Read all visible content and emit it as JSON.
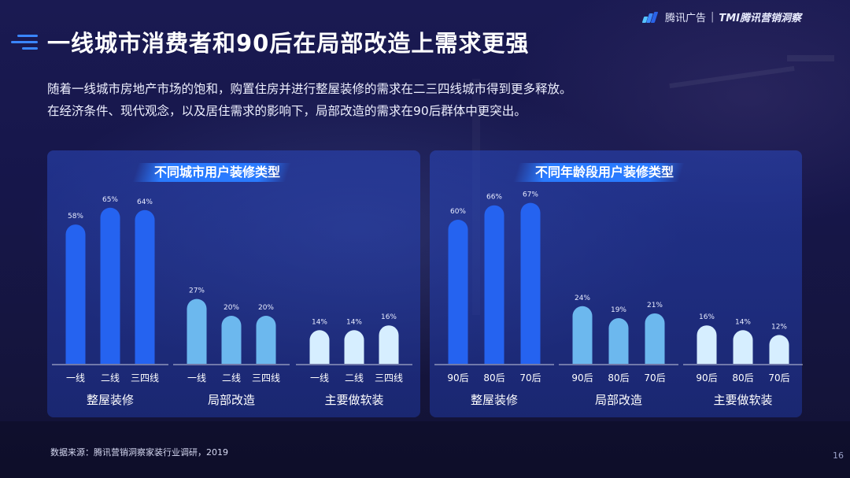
{
  "header": {
    "brand": "腾讯广告",
    "separator": "|",
    "brand2": "TMI腾讯营销洞察"
  },
  "page_title": "一线城市消费者和90后在局部改造上需求更强",
  "subtitle": [
    "随着一线城市房地产市场的饱和，购置住房并进行整屋装修的需求在二三四线城市得到更多释放。",
    "在经济条件、现代观念，以及居住需求的影响下，局部改造的需求在90后群体中更突出。"
  ],
  "footer": {
    "source": "数据来源：腾讯营销洞察家装行业调研，2019",
    "page_number": "16"
  },
  "colors": {
    "group1": "#2563f0",
    "group2": "#6cb8ee",
    "group3": "#d6eeff"
  },
  "chart_data": [
    {
      "type": "bar",
      "title": "不同城市用户装修类型",
      "ylim": [
        0,
        100
      ],
      "groups": [
        {
          "name": "整屋装修",
          "categories": [
            "一线",
            "二线",
            "三四线"
          ],
          "values": [
            58,
            65,
            64
          ],
          "labels": [
            "58%",
            "65%",
            "64%"
          ]
        },
        {
          "name": "局部改造",
          "categories": [
            "一线",
            "二线",
            "三四线"
          ],
          "values": [
            27,
            20,
            20
          ],
          "labels": [
            "27%",
            "20%",
            "20%"
          ]
        },
        {
          "name": "主要做软装",
          "categories": [
            "一线",
            "二线",
            "三四线"
          ],
          "values": [
            14,
            14,
            16
          ],
          "labels": [
            "14%",
            "14%",
            "16%"
          ]
        }
      ]
    },
    {
      "type": "bar",
      "title": "不同年龄段用户装修类型",
      "ylim": [
        0,
        100
      ],
      "groups": [
        {
          "name": "整屋装修",
          "categories": [
            "90后",
            "80后",
            "70后"
          ],
          "values": [
            60,
            66,
            67
          ],
          "labels": [
            "60%",
            "66%",
            "67%"
          ]
        },
        {
          "name": "局部改造",
          "categories": [
            "90后",
            "80后",
            "70后"
          ],
          "values": [
            24,
            19,
            21
          ],
          "labels": [
            "24%",
            "19%",
            "21%"
          ]
        },
        {
          "name": "主要做软装",
          "categories": [
            "90后",
            "80后",
            "70后"
          ],
          "values": [
            16,
            14,
            12
          ],
          "labels": [
            "16%",
            "14%",
            "12%"
          ]
        }
      ]
    }
  ]
}
